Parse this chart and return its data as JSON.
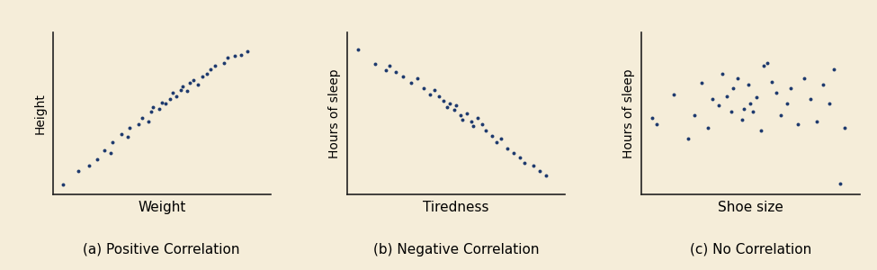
{
  "bg_color": "#f5edd9",
  "dot_color": "#1e3a6e",
  "dot_size": 8,
  "plots": [
    {
      "xlabel": "Weight",
      "ylabel": "Height",
      "caption": "(a) Positive Correlation",
      "x": [
        0.05,
        0.12,
        0.17,
        0.21,
        0.24,
        0.27,
        0.28,
        0.32,
        0.35,
        0.36,
        0.4,
        0.42,
        0.45,
        0.46,
        0.47,
        0.5,
        0.51,
        0.53,
        0.55,
        0.56,
        0.58,
        0.6,
        0.61,
        0.63,
        0.64,
        0.66,
        0.68,
        0.7,
        0.72,
        0.74,
        0.76,
        0.8,
        0.82,
        0.85,
        0.88,
        0.91
      ],
      "y": [
        0.06,
        0.15,
        0.18,
        0.22,
        0.28,
        0.26,
        0.33,
        0.38,
        0.36,
        0.42,
        0.44,
        0.48,
        0.46,
        0.52,
        0.55,
        0.54,
        0.58,
        0.57,
        0.6,
        0.64,
        0.62,
        0.66,
        0.68,
        0.65,
        0.7,
        0.72,
        0.69,
        0.74,
        0.76,
        0.79,
        0.81,
        0.83,
        0.86,
        0.87,
        0.88,
        0.9
      ]
    },
    {
      "xlabel": "Tiredness",
      "ylabel": "Hours of sleep",
      "caption": "(b) Negative Correlation",
      "x": [
        0.05,
        0.13,
        0.18,
        0.2,
        0.23,
        0.26,
        0.3,
        0.33,
        0.36,
        0.39,
        0.41,
        0.43,
        0.45,
        0.47,
        0.48,
        0.5,
        0.51,
        0.53,
        0.54,
        0.56,
        0.58,
        0.59,
        0.61,
        0.63,
        0.65,
        0.68,
        0.7,
        0.72,
        0.75,
        0.78,
        0.81,
        0.83,
        0.87,
        0.9,
        0.93
      ],
      "y": [
        0.91,
        0.82,
        0.78,
        0.81,
        0.77,
        0.74,
        0.7,
        0.73,
        0.67,
        0.63,
        0.66,
        0.62,
        0.59,
        0.55,
        0.57,
        0.53,
        0.56,
        0.5,
        0.47,
        0.51,
        0.46,
        0.43,
        0.48,
        0.44,
        0.4,
        0.37,
        0.33,
        0.35,
        0.29,
        0.26,
        0.23,
        0.2,
        0.18,
        0.15,
        0.12
      ]
    },
    {
      "xlabel": "Shoe size",
      "ylabel": "Hours of sleep",
      "caption": "(c) No Correlation",
      "x": [
        0.05,
        0.07,
        0.15,
        0.22,
        0.25,
        0.28,
        0.31,
        0.33,
        0.36,
        0.38,
        0.4,
        0.42,
        0.43,
        0.45,
        0.47,
        0.48,
        0.5,
        0.51,
        0.52,
        0.54,
        0.56,
        0.57,
        0.59,
        0.61,
        0.63,
        0.65,
        0.68,
        0.7,
        0.73,
        0.76,
        0.79,
        0.82,
        0.85,
        0.88,
        0.9,
        0.93,
        0.95
      ],
      "y": [
        0.48,
        0.44,
        0.63,
        0.35,
        0.5,
        0.7,
        0.42,
        0.6,
        0.56,
        0.76,
        0.62,
        0.52,
        0.67,
        0.73,
        0.47,
        0.54,
        0.69,
        0.57,
        0.52,
        0.61,
        0.4,
        0.81,
        0.83,
        0.71,
        0.64,
        0.5,
        0.57,
        0.67,
        0.44,
        0.73,
        0.6,
        0.46,
        0.69,
        0.57,
        0.79,
        0.07,
        0.42
      ]
    }
  ],
  "xlabel_fontsize": 11,
  "ylabel_fontsize": 10,
  "caption_fontsize": 11
}
